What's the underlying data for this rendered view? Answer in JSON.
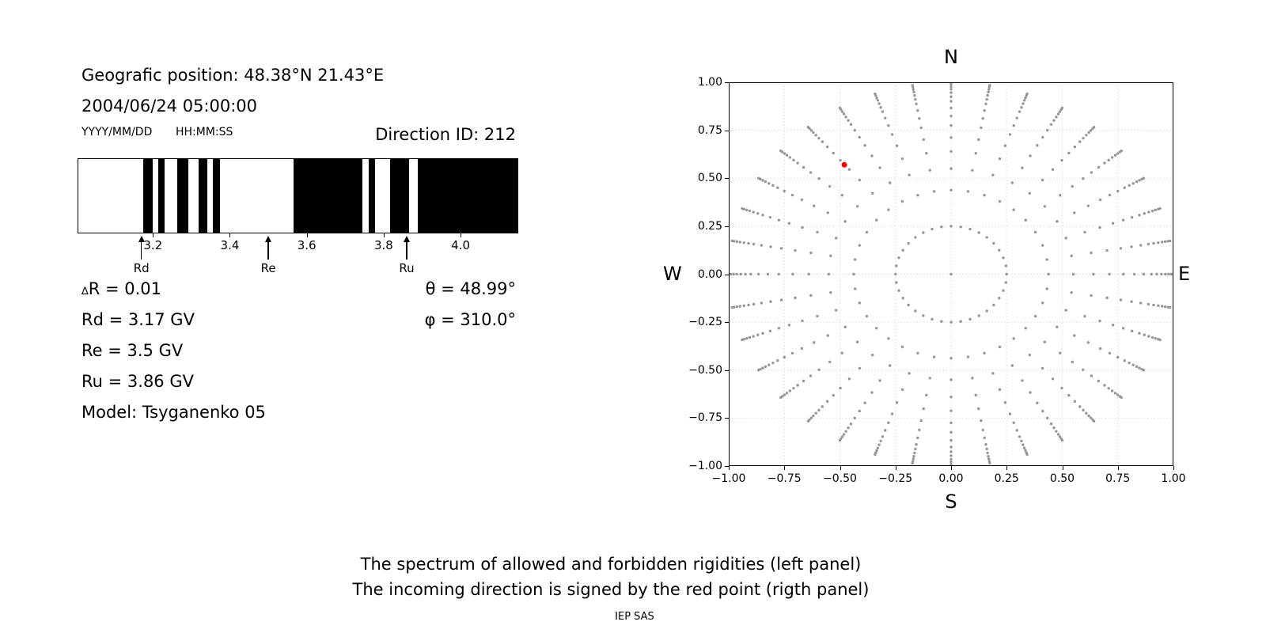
{
  "header": {
    "geo_position": "Geografic position: 48.38°N 21.43°E",
    "datetime": "2004/06/24 05:00:00",
    "date_format_label": "YYYY/MM/DD",
    "time_format_label": "HH:MM:SS",
    "direction_id": "Direction ID: 212"
  },
  "parameters": {
    "delta_sym": "∆",
    "delta_rest": "R = 0.01",
    "rd": "Rd = 3.17 GV",
    "re": "Re = 3.5 GV",
    "ru": "Ru = 3.86 GV",
    "model": "Model: Tsyganenko 05",
    "theta": "θ = 48.99°",
    "phi": "φ = 310.0°"
  },
  "direction_panel": {
    "compass": {
      "top": "N",
      "bottom": "S",
      "left": "W",
      "right": "E"
    },
    "x_tick_labels": [
      "−1.00",
      "−0.75",
      "−0.50",
      "−0.25",
      "0.00",
      "0.25",
      "0.50",
      "0.75",
      "1.00"
    ],
    "y_tick_labels": [
      "1.00",
      "0.75",
      "0.50",
      "0.25",
      "0.00",
      "−0.25",
      "−0.50",
      "−0.75",
      "−1.00"
    ]
  },
  "footer": {
    "caption_line1": "The spectrum of allowed and forbidden rigidities (left panel)",
    "caption_line2": "The incoming direction is signed by the red point (rigth panel)",
    "credit": "IEP SAS"
  },
  "colors": {
    "dot_gray": "#969696",
    "red_point": "#ff0000",
    "grid": "#dcdcdc",
    "band": "#000000"
  },
  "chart_data": [
    {
      "type": "bar",
      "title": "Rigidity spectrum of allowed (black) and forbidden (white) bands",
      "x_range_gv": [
        3.004,
        4.15
      ],
      "tick_values_gv": [
        3.2,
        3.4,
        3.6,
        3.8,
        4.0
      ],
      "tick_labels": [
        "3.2",
        "3.4",
        "3.6",
        "3.8",
        "4.0"
      ],
      "allowed_bands_gv": [
        [
          3.173,
          3.198
        ],
        [
          3.213,
          3.23
        ],
        [
          3.263,
          3.292
        ],
        [
          3.318,
          3.341
        ],
        [
          3.356,
          3.374
        ],
        [
          3.566,
          3.746
        ],
        [
          3.762,
          3.778
        ],
        [
          3.817,
          3.868
        ],
        [
          3.889,
          4.15
        ]
      ],
      "cutoff_markers": [
        {
          "label": "Rd",
          "value_gv": 3.17
        },
        {
          "label": "Re",
          "value_gv": 3.5
        },
        {
          "label": "Ru",
          "value_gv": 3.86
        }
      ],
      "delta_r_gv": 0.01
    },
    {
      "type": "scatter",
      "title": "Incoming direction grid (N up, E right)",
      "xlim": [
        -1,
        1
      ],
      "ylim": [
        -1,
        1
      ],
      "grid_step": 0.25,
      "azimuth_step_deg": 10,
      "ray_radii": [
        1.0,
        0.991,
        0.978,
        0.964,
        0.946,
        0.925,
        0.901,
        0.866,
        0.824,
        0.775,
        0.712,
        0.64,
        0.55,
        0.438
      ],
      "inner_ring": {
        "radius": 0.25,
        "n_points": 36
      },
      "center_point": {
        "x": 0,
        "y": 0
      },
      "red_point": {
        "x": -0.48,
        "y": 0.57,
        "meaning": "incoming direction"
      }
    }
  ]
}
